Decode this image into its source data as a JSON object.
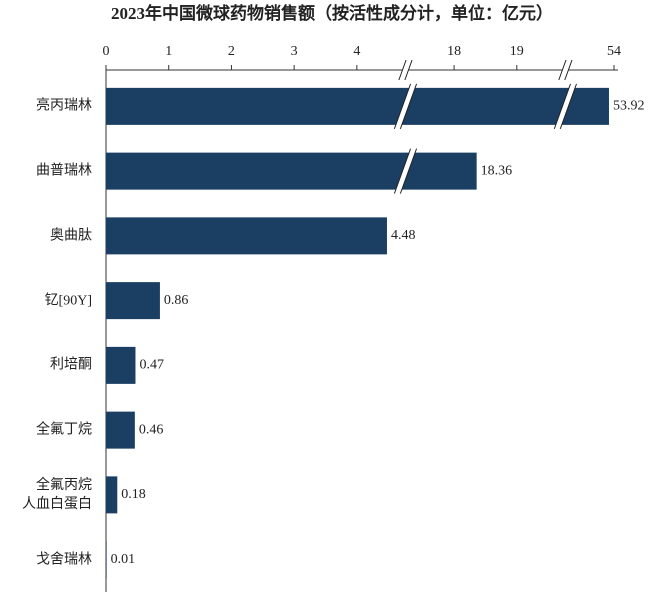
{
  "chart_data": {
    "type": "bar",
    "orientation": "horizontal",
    "title": "2023年中国微球药物销售额（按活性成分计，单位：亿元）",
    "categories": [
      "亮丙瑞林",
      "曲普瑞林",
      "奥曲肽",
      "钇[90Y]",
      "利培酮",
      "全氟丁烷",
      "全氟丙烷\n人血白蛋白",
      "戈舍瑞林"
    ],
    "values": [
      53.92,
      18.36,
      4.48,
      0.86,
      0.47,
      0.46,
      0.18,
      0.01
    ],
    "color": "#1b3f63",
    "xlim": [
      0,
      54
    ],
    "xticks": [
      0,
      1,
      2,
      3,
      4,
      18,
      19,
      54
    ],
    "axis_breaks": true
  }
}
